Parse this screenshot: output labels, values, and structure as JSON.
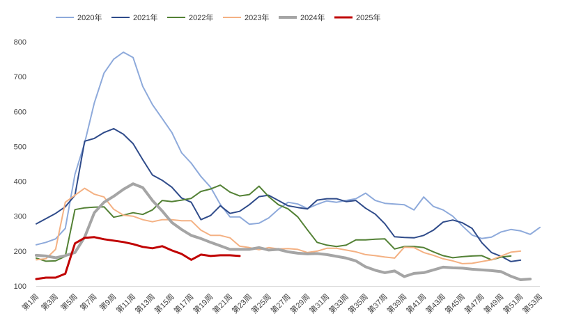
{
  "chart_data": {
    "type": "line",
    "title": "",
    "xlabel": "",
    "ylabel": "",
    "ylim": [
      100,
      800
    ],
    "yticks": [
      100,
      200,
      300,
      400,
      500,
      600,
      700,
      800
    ],
    "grid": false,
    "legend_position": "top",
    "x_range": [
      1,
      53
    ],
    "x_tick_weeks": [
      1,
      3,
      5,
      7,
      9,
      11,
      13,
      15,
      17,
      19,
      21,
      23,
      25,
      27,
      29,
      31,
      33,
      35,
      37,
      39,
      41,
      43,
      45,
      47,
      49,
      51,
      53
    ],
    "x_tick_labels": [
      "第1周",
      "第3周",
      "第5周",
      "第7周",
      "第9周",
      "第11周",
      "第13周",
      "第15周",
      "第17周",
      "第19周",
      "第21周",
      "第23周",
      "第25周",
      "第27周",
      "第29周",
      "第31周",
      "第33周",
      "第35周",
      "第37周",
      "第39周",
      "第41周",
      "第43周",
      "第45周",
      "第47周",
      "第49周",
      "第51周",
      "第53周"
    ],
    "series": [
      {
        "name": "2020年",
        "color": "#8eaadb",
        "width": 2,
        "x": [
          1,
          2,
          3,
          4,
          5,
          6,
          7,
          8,
          9,
          10,
          11,
          12,
          13,
          14,
          15,
          16,
          17,
          18,
          19,
          20,
          21,
          22,
          23,
          24,
          25,
          26,
          27,
          28,
          29,
          30,
          31,
          32,
          33,
          34,
          35,
          36,
          37,
          38,
          39,
          40,
          41,
          42,
          43,
          44,
          45,
          46,
          47,
          48,
          49,
          50,
          51,
          52,
          53
        ],
        "values": [
          218,
          225,
          235,
          265,
          420,
          510,
          625,
          710,
          750,
          770,
          755,
          672,
          620,
          580,
          540,
          482,
          452,
          414,
          383,
          334,
          298,
          298,
          277,
          280,
          295,
          320,
          340,
          335,
          322,
          334,
          344,
          340,
          345,
          350,
          366,
          345,
          337,
          335,
          333,
          318,
          355,
          328,
          318,
          300,
          272,
          246,
          236,
          240,
          255,
          262,
          258,
          248,
          268
        ]
      },
      {
        "name": "2021年",
        "color": "#2f4b8a",
        "width": 2,
        "x": [
          1,
          2,
          3,
          4,
          5,
          6,
          7,
          8,
          9,
          10,
          11,
          12,
          13,
          14,
          15,
          16,
          17,
          18,
          19,
          20,
          21,
          22,
          23,
          24,
          25,
          26,
          27,
          28,
          29,
          30,
          31,
          32,
          33,
          34,
          35,
          36,
          37,
          38,
          39,
          40,
          41,
          42,
          43,
          44,
          45,
          46,
          47,
          48,
          49,
          50,
          51
        ],
        "values": [
          278,
          293,
          308,
          327,
          360,
          515,
          523,
          540,
          551,
          535,
          508,
          462,
          418,
          403,
          383,
          352,
          340,
          290,
          302,
          330,
          308,
          314,
          333,
          356,
          360,
          345,
          330,
          325,
          321,
          346,
          350,
          350,
          342,
          345,
          323,
          306,
          278,
          241,
          239,
          238,
          245,
          260,
          283,
          289,
          281,
          265,
          224,
          196,
          185,
          170,
          174
        ]
      },
      {
        "name": "2022年",
        "color": "#538135",
        "width": 2,
        "x": [
          1,
          2,
          3,
          4,
          5,
          6,
          7,
          8,
          9,
          10,
          11,
          12,
          13,
          14,
          15,
          16,
          17,
          18,
          19,
          20,
          21,
          22,
          23,
          24,
          25,
          26,
          27,
          28,
          29,
          30,
          31,
          32,
          33,
          34,
          35,
          36,
          37,
          38,
          39,
          40,
          41,
          42,
          43,
          44,
          45,
          46,
          47,
          48,
          49,
          50
        ],
        "values": [
          180,
          171,
          172,
          185,
          319,
          324,
          326,
          327,
          297,
          303,
          310,
          305,
          318,
          345,
          342,
          346,
          351,
          371,
          378,
          389,
          369,
          358,
          362,
          386,
          356,
          333,
          321,
          298,
          261,
          225,
          217,
          213,
          217,
          232,
          232,
          234,
          235,
          206,
          213,
          213,
          210,
          198,
          187,
          181,
          184,
          186,
          187,
          175,
          183,
          186
        ]
      },
      {
        "name": "2023年",
        "color": "#f4b183",
        "width": 2,
        "x": [
          1,
          2,
          3,
          4,
          5,
          6,
          7,
          8,
          9,
          10,
          11,
          12,
          13,
          14,
          15,
          16,
          17,
          18,
          19,
          20,
          21,
          22,
          23,
          24,
          25,
          26,
          27,
          28,
          29,
          30,
          31,
          32,
          33,
          34,
          35,
          36,
          37,
          38,
          39,
          40,
          41,
          42,
          43,
          44,
          45,
          46,
          47,
          48,
          49,
          50,
          51
        ],
        "values": [
          175,
          178,
          205,
          340,
          360,
          380,
          363,
          355,
          320,
          303,
          300,
          290,
          284,
          290,
          290,
          287,
          287,
          260,
          245,
          245,
          238,
          214,
          210,
          204,
          210,
          206,
          207,
          205,
          196,
          200,
          208,
          208,
          203,
          198,
          190,
          187,
          183,
          180,
          211,
          210,
          196,
          188,
          178,
          172,
          164,
          165,
          170,
          175,
          186,
          197,
          200
        ]
      },
      {
        "name": "2024年",
        "color": "#a5a5a5",
        "width": 4,
        "x": [
          1,
          2,
          3,
          4,
          5,
          6,
          7,
          8,
          9,
          10,
          11,
          12,
          13,
          14,
          15,
          16,
          17,
          18,
          19,
          20,
          21,
          22,
          23,
          24,
          25,
          26,
          27,
          28,
          29,
          30,
          31,
          32,
          33,
          34,
          35,
          36,
          37,
          38,
          39,
          40,
          41,
          42,
          43,
          44,
          45,
          46,
          47,
          48,
          49,
          50,
          51,
          52
        ],
        "values": [
          188,
          186,
          181,
          187,
          196,
          240,
          310,
          340,
          357,
          377,
          393,
          382,
          345,
          315,
          282,
          262,
          245,
          236,
          225,
          215,
          205,
          205,
          205,
          210,
          203,
          205,
          198,
          194,
          192,
          193,
          190,
          185,
          180,
          172,
          155,
          145,
          138,
          143,
          127,
          136,
          138,
          146,
          154,
          152,
          151,
          148,
          146,
          144,
          141,
          128,
          118,
          120
        ]
      },
      {
        "name": "2025年",
        "color": "#c00000",
        "width": 3,
        "x": [
          1,
          2,
          3,
          4,
          5,
          6,
          7,
          8,
          9,
          10,
          11,
          12,
          13,
          14,
          15,
          16,
          17,
          18,
          19,
          20,
          21,
          22
        ],
        "values": [
          120,
          124,
          124,
          135,
          222,
          238,
          240,
          234,
          230,
          226,
          220,
          212,
          208,
          214,
          202,
          192,
          175,
          190,
          186,
          188,
          188,
          186
        ]
      }
    ]
  }
}
